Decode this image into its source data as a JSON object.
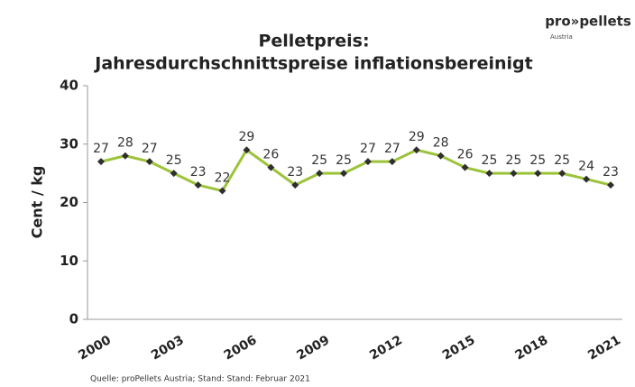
{
  "chart_data": {
    "type": "line",
    "title": "Pelletpreis:",
    "subtitle": "Jahresdurchschnittspreise inflationsbereinigt",
    "ylabel": "Cent / kg",
    "source": "Quelle: proPellets Austria; Stand: Stand: Februar 2021",
    "logo": "pro»pellets",
    "logo_sub": "Austria",
    "categories": [
      "2000",
      null,
      null,
      "2003",
      null,
      null,
      "2006",
      null,
      null,
      "2009",
      null,
      null,
      "2012",
      null,
      null,
      "2015",
      null,
      null,
      "2018",
      null,
      null,
      "2021"
    ],
    "values": [
      27,
      28,
      27,
      25,
      23,
      22,
      29,
      26,
      23,
      25,
      25,
      27,
      27,
      29,
      28,
      26,
      25,
      25,
      25,
      25,
      24,
      23
    ],
    "color": "#9cc33a",
    "marker_color": "#2f2f2f",
    "ylim": [
      0,
      40
    ],
    "yticks": [
      0,
      10,
      20,
      30,
      40
    ],
    "grid": false
  }
}
